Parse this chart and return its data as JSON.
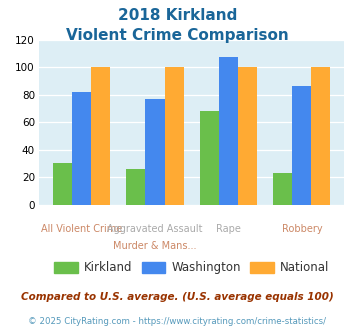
{
  "title_line1": "2018 Kirkland",
  "title_line2": "Violent Crime Comparison",
  "top_labels": [
    "",
    "Aggravated Assault",
    "Rape",
    ""
  ],
  "bottom_labels": [
    "All Violent Crime",
    "Murder & Mans...",
    "",
    "Robbery"
  ],
  "kirkland": [
    30,
    26,
    68,
    23
  ],
  "washington": [
    82,
    77,
    107,
    86
  ],
  "national": [
    100,
    100,
    100,
    100
  ],
  "color_kirkland": "#6abf4b",
  "color_washington": "#4488ee",
  "color_national": "#ffaa33",
  "ylabel_max": 120,
  "yticks": [
    0,
    20,
    40,
    60,
    80,
    100,
    120
  ],
  "background_color": "#ddeef5",
  "legend_labels": [
    "Kirkland",
    "Washington",
    "National"
  ],
  "footnote1": "Compared to U.S. average. (U.S. average equals 100)",
  "footnote2": "© 2025 CityRating.com - https://www.cityrating.com/crime-statistics/",
  "title_color": "#1a6699",
  "top_label_color": "#aaaaaa",
  "bottom_label_color": "#cc8866",
  "footnote1_color": "#993300",
  "footnote2_color": "#5599bb"
}
